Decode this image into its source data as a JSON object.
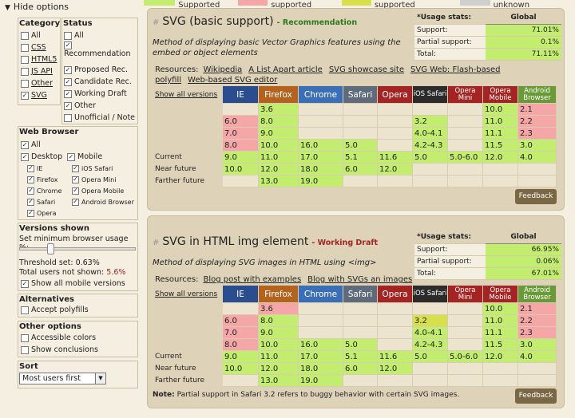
{
  "legend": [
    {
      "label": "= Supported",
      "color": "#c2ed6e"
    },
    {
      "label": "= Not supported",
      "color": "#f5a6a6"
    },
    {
      "label": "= Partially supported",
      "color": "#d7e04b"
    },
    {
      "label": "= Support unknown",
      "color": "#cfcfcf"
    }
  ],
  "sidebar": {
    "hide_options": "Hide options",
    "category": {
      "title": "Category",
      "items": [
        {
          "label": "All",
          "checked": false,
          "link": false
        },
        {
          "label": "CSS",
          "checked": false,
          "link": true
        },
        {
          "label": "HTML5",
          "checked": false,
          "link": true
        },
        {
          "label": "JS API",
          "checked": false,
          "link": true
        },
        {
          "label": "Other",
          "checked": false,
          "link": true
        },
        {
          "label": "SVG",
          "checked": true,
          "link": true
        }
      ]
    },
    "status": {
      "title": "Status",
      "items": [
        {
          "label": "All",
          "checked": false
        },
        {
          "label": "Recommendation",
          "checked": true
        },
        {
          "label": "Proposed Rec.",
          "checked": true
        },
        {
          "label": "Candidate Rec.",
          "checked": true
        },
        {
          "label": "Working Draft",
          "checked": true
        },
        {
          "label": "Other",
          "checked": true
        },
        {
          "label": "Unofficial / Note",
          "checked": false
        }
      ]
    },
    "web_browser": {
      "title": "Web Browser",
      "all": "All",
      "desktop": "Desktop",
      "mobile": "Mobile",
      "desktop_items": [
        "IE",
        "Firefox",
        "Chrome",
        "Safari",
        "Opera"
      ],
      "mobile_items": [
        "iOS Safari",
        "Opera Mini",
        "Opera Mobile",
        "Android Browser"
      ]
    },
    "versions": {
      "title": "Versions shown",
      "min_usage": "Set minimum browser usage %:",
      "threshold": "Threshold set: 0.63%",
      "total_not_shown_label": "Total users not shown:",
      "total_not_shown_value": "5.6%",
      "show_mobile": "Show all mobile versions"
    },
    "alternatives": {
      "title": "Alternatives",
      "accept_polyfills": "Accept polyfills"
    },
    "other_options": {
      "title": "Other options",
      "accessible_colors": "Accessible colors",
      "show_conclusions": "Show conclusions"
    },
    "sort": {
      "title": "Sort",
      "selected": "Most users first"
    }
  },
  "browsers": [
    {
      "name": "IE",
      "color": "#2a4d8f"
    },
    {
      "name": "Firefox",
      "color": "#b4631f"
    },
    {
      "name": "Chrome",
      "color": "#3a6fb8"
    },
    {
      "name": "Safari",
      "color": "#5f6b7a"
    },
    {
      "name": "Opera",
      "color": "#a42424"
    },
    {
      "name": "iOS Safari",
      "color": "#2b2b2b"
    },
    {
      "name": "Opera Mini",
      "color": "#a42424"
    },
    {
      "name": "Opera Mobile",
      "color": "#a42424"
    },
    {
      "name": "Android Browser",
      "color": "#6a9a38"
    }
  ],
  "row_labels": [
    "",
    "",
    "",
    "",
    "Current",
    "Near future",
    "Farther future"
  ],
  "show_all_versions": "Show all versions",
  "features": [
    {
      "title": "SVG (basic support)",
      "status": "- Recommendation",
      "status_color": "#2a7a1a",
      "description_lines": [
        "Method of displaying basic Vector Graphics features using the",
        "embed or object elements"
      ],
      "resources_label": "Resources:",
      "resources": [
        "Wikipedia",
        "A List Apart article",
        "SVG showcase site",
        "SVG Web: Flash-based polyfill",
        "Web-based SVG editor"
      ],
      "usage": {
        "title": "*Usage stats:",
        "global": "Global",
        "rows": [
          {
            "label": "Support:",
            "value": "71.01%"
          },
          {
            "label": "Partial support:",
            "value": "0.1%"
          },
          {
            "label": "Total:",
            "value": "71.11%"
          }
        ]
      },
      "grid": [
        [
          [
            "",
            "e"
          ],
          [
            "3.6",
            "y"
          ],
          [
            "",
            "e"
          ],
          [
            "",
            "e"
          ],
          [
            "",
            "e"
          ],
          [
            "",
            "e"
          ],
          [
            "",
            "e"
          ],
          [
            "10.0",
            "y"
          ],
          [
            "2.1",
            "n"
          ]
        ],
        [
          [
            "6.0",
            "n"
          ],
          [
            "8.0",
            "y"
          ],
          [
            "",
            "e"
          ],
          [
            "",
            "e"
          ],
          [
            "",
            "e"
          ],
          [
            "3.2",
            "y"
          ],
          [
            "",
            "e"
          ],
          [
            "11.0",
            "y"
          ],
          [
            "2.2",
            "n"
          ]
        ],
        [
          [
            "7.0",
            "n"
          ],
          [
            "9.0",
            "y"
          ],
          [
            "",
            "e"
          ],
          [
            "",
            "e"
          ],
          [
            "",
            "e"
          ],
          [
            "4.0-4.1",
            "y"
          ],
          [
            "",
            "e"
          ],
          [
            "11.1",
            "y"
          ],
          [
            "2.3",
            "n"
          ]
        ],
        [
          [
            "8.0",
            "n"
          ],
          [
            "10.0",
            "y"
          ],
          [
            "16.0",
            "y"
          ],
          [
            "5.0",
            "y"
          ],
          [
            "",
            "e"
          ],
          [
            "4.2-4.3",
            "y"
          ],
          [
            "",
            "e"
          ],
          [
            "11.5",
            "y"
          ],
          [
            "3.0",
            "y"
          ]
        ],
        [
          [
            "9.0",
            "y"
          ],
          [
            "11.0",
            "y"
          ],
          [
            "17.0",
            "y"
          ],
          [
            "5.1",
            "y"
          ],
          [
            "11.6",
            "y"
          ],
          [
            "5.0",
            "y"
          ],
          [
            "5.0-6.0",
            "y"
          ],
          [
            "12.0",
            "y"
          ],
          [
            "4.0",
            "y"
          ]
        ],
        [
          [
            "10.0",
            "y"
          ],
          [
            "12.0",
            "y"
          ],
          [
            "18.0",
            "y"
          ],
          [
            "6.0",
            "y"
          ],
          [
            "12.0",
            "y"
          ],
          [
            "",
            "e"
          ],
          [
            "",
            "e"
          ],
          [
            "",
            "e"
          ],
          [
            "",
            "e"
          ]
        ],
        [
          [
            "",
            "e"
          ],
          [
            "13.0",
            "y"
          ],
          [
            "19.0",
            "y"
          ],
          [
            "",
            "e"
          ],
          [
            "",
            "e"
          ],
          [
            "",
            "e"
          ],
          [
            "",
            "e"
          ],
          [
            "",
            "e"
          ],
          [
            "",
            "e"
          ]
        ]
      ],
      "note": "",
      "feedback": "Feedback"
    },
    {
      "title": "SVG in HTML img element",
      "status": "- Working Draft",
      "status_color": "#a42424",
      "description_lines": [
        "Method of displaying SVG images in HTML using <img>"
      ],
      "resources_label": "Resources:",
      "resources": [
        "Blog post with examples",
        "Blog with SVGs an images"
      ],
      "usage": {
        "title": "*Usage stats:",
        "global": "Global",
        "rows": [
          {
            "label": "Support:",
            "value": "66.95%"
          },
          {
            "label": "Partial support:",
            "value": "0.06%"
          },
          {
            "label": "Total:",
            "value": "67.01%"
          }
        ]
      },
      "grid": [
        [
          [
            "",
            "e"
          ],
          [
            "3.6",
            "n"
          ],
          [
            "",
            "e"
          ],
          [
            "",
            "e"
          ],
          [
            "",
            "e"
          ],
          [
            "",
            "e"
          ],
          [
            "",
            "e"
          ],
          [
            "10.0",
            "y"
          ],
          [
            "2.1",
            "n"
          ]
        ],
        [
          [
            "6.0",
            "n"
          ],
          [
            "8.0",
            "y"
          ],
          [
            "",
            "e"
          ],
          [
            "",
            "e"
          ],
          [
            "",
            "e"
          ],
          [
            "3.2",
            "p"
          ],
          [
            "",
            "e"
          ],
          [
            "11.0",
            "y"
          ],
          [
            "2.2",
            "n"
          ]
        ],
        [
          [
            "7.0",
            "n"
          ],
          [
            "9.0",
            "y"
          ],
          [
            "",
            "e"
          ],
          [
            "",
            "e"
          ],
          [
            "",
            "e"
          ],
          [
            "4.0-4.1",
            "y"
          ],
          [
            "",
            "e"
          ],
          [
            "11.1",
            "y"
          ],
          [
            "2.3",
            "n"
          ]
        ],
        [
          [
            "8.0",
            "n"
          ],
          [
            "10.0",
            "y"
          ],
          [
            "16.0",
            "y"
          ],
          [
            "5.0",
            "y"
          ],
          [
            "",
            "e"
          ],
          [
            "4.2-4.3",
            "y"
          ],
          [
            "",
            "e"
          ],
          [
            "11.5",
            "y"
          ],
          [
            "3.0",
            "y"
          ]
        ],
        [
          [
            "9.0",
            "y"
          ],
          [
            "11.0",
            "y"
          ],
          [
            "17.0",
            "y"
          ],
          [
            "5.1",
            "y"
          ],
          [
            "11.6",
            "y"
          ],
          [
            "5.0",
            "y"
          ],
          [
            "5.0-6.0",
            "y"
          ],
          [
            "12.0",
            "y"
          ],
          [
            "4.0",
            "y"
          ]
        ],
        [
          [
            "10.0",
            "y"
          ],
          [
            "12.0",
            "y"
          ],
          [
            "18.0",
            "y"
          ],
          [
            "6.0",
            "y"
          ],
          [
            "12.0",
            "y"
          ],
          [
            "",
            "e"
          ],
          [
            "",
            "e"
          ],
          [
            "",
            "e"
          ],
          [
            "",
            "e"
          ]
        ],
        [
          [
            "",
            "e"
          ],
          [
            "13.0",
            "y"
          ],
          [
            "19.0",
            "y"
          ],
          [
            "",
            "e"
          ],
          [
            "",
            "e"
          ],
          [
            "",
            "e"
          ],
          [
            "",
            "e"
          ],
          [
            "",
            "e"
          ],
          [
            "",
            "e"
          ]
        ]
      ],
      "note_bold": "Note:",
      "note": "Partial support in Safari 3.2 refers to buggy behavior with certain SVG images.",
      "feedback": "Feedback"
    }
  ]
}
